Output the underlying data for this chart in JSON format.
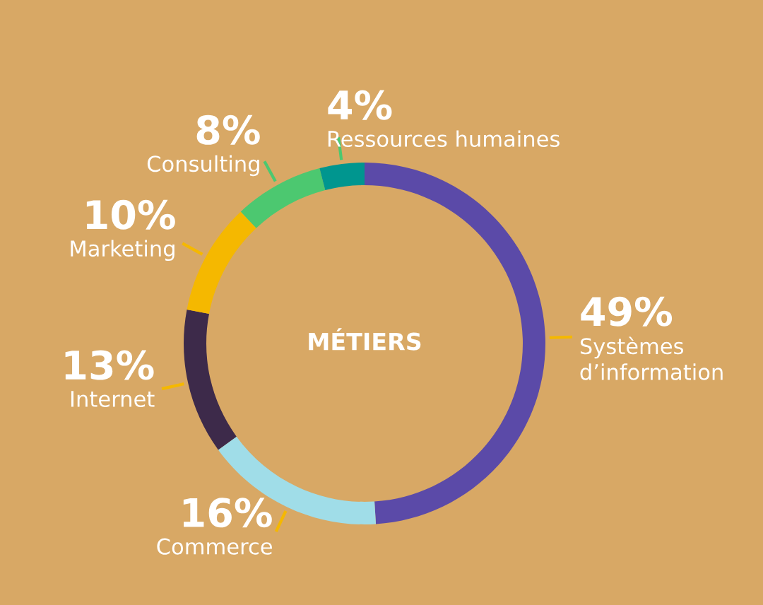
{
  "chart_data": {
    "type": "donut",
    "categories": [
      "Systèmes\nd’information",
      "Commerce",
      "Internet",
      "Marketing",
      "Consulting",
      "Ressources humaines"
    ],
    "values": [
      49,
      16,
      13,
      10,
      8,
      4
    ],
    "value_labels": [
      "49%",
      "16%",
      "13%",
      "10%",
      "8%",
      "4%"
    ],
    "colors": [
      "#5b4aa8",
      "#a0dde8",
      "#3d2a4a",
      "#f5b800",
      "#4cc870",
      "#00968f"
    ],
    "annotations": [
      "MÉTIERS"
    ],
    "legend": false
  }
}
